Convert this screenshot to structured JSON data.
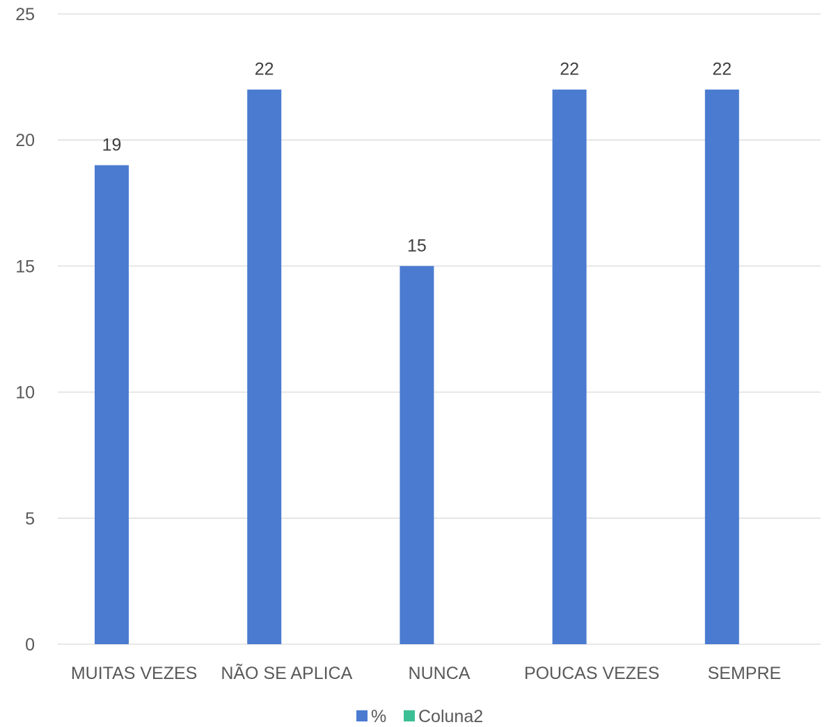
{
  "chart_data": {
    "type": "bar",
    "categories": [
      "MUITAS VEZES",
      "NÃO SE APLICA",
      "NUNCA",
      "POUCAS VEZES",
      "SEMPRE"
    ],
    "series": [
      {
        "name": "%",
        "values": [
          19,
          22,
          15,
          22,
          22
        ],
        "color": "#4a7bd0"
      },
      {
        "name": "Coluna2",
        "values": [
          null,
          null,
          null,
          null,
          null
        ],
        "color": "#3dbf95"
      }
    ],
    "data_labels": [
      "19",
      "22",
      "15",
      "22",
      "22"
    ],
    "yticks": [
      "0",
      "5",
      "10",
      "15",
      "20",
      "25"
    ],
    "ylim": [
      0,
      25
    ],
    "grid": true,
    "legend": "bottom",
    "title": "",
    "xlabel": "",
    "ylabel": ""
  }
}
